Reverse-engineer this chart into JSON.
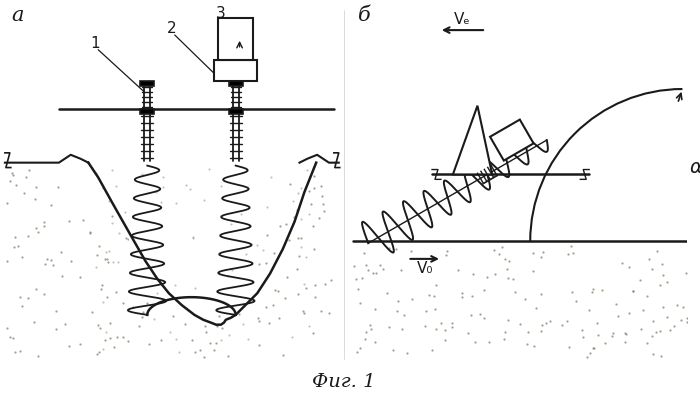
{
  "bg_color": "#ffffff",
  "line_color": "#1a1a1a",
  "soil_color": "#d8d0bc",
  "soil_dot_color": "#8a7a60",
  "fig_label_a": "a",
  "fig_label_b": "б",
  "label_1": "1",
  "label_2": "2",
  "label_3": "3",
  "label_ve": "Vₑ",
  "label_vo": "V₀",
  "label_alpha": "α",
  "fig_caption": "Фиг. 1"
}
